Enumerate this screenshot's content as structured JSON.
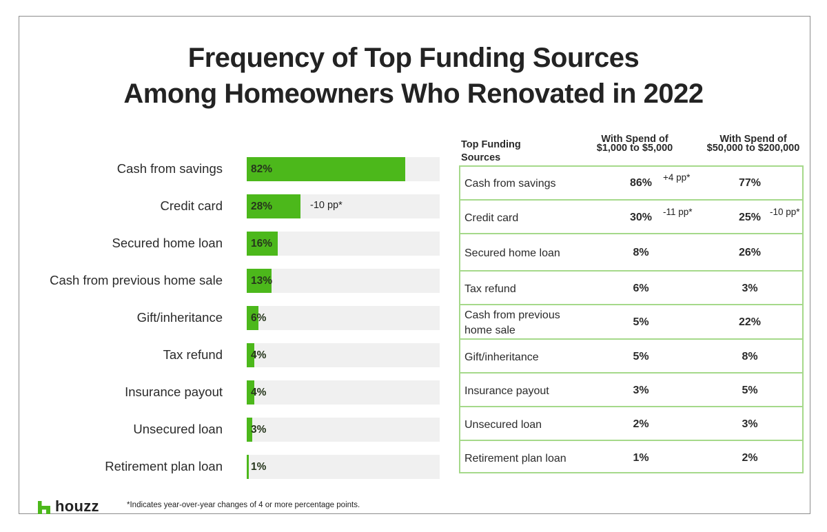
{
  "title": {
    "line1": "Frequency of Top Funding Sources",
    "line2": "Among Homeowners Who Renovated in 2022"
  },
  "colors": {
    "bar_fill": "#4cb81b",
    "bar_track": "#f0f0f0",
    "table_border": "#a5d98a",
    "brand_green": "#4cb81b"
  },
  "chart_data": [
    {
      "type": "bar",
      "orientation": "horizontal",
      "title": "Frequency of Top Funding Sources Among Homeowners Who Renovated in 2022",
      "xlabel": "",
      "ylabel": "",
      "xlim": [
        0,
        100
      ],
      "grid": false,
      "legend": null,
      "categories": [
        "Cash from savings",
        "Credit card",
        "Secured home loan",
        "Cash from previous home sale",
        "Gift/inheritance",
        "Tax refund",
        "Insurance payout",
        "Unsecured loan",
        "Retirement plan loan"
      ],
      "values": [
        82,
        28,
        16,
        13,
        6,
        4,
        4,
        3,
        1
      ],
      "value_labels": [
        "82%",
        "28%",
        "16%",
        "13%",
        "6%",
        "4%",
        "4%",
        "3%",
        "1%"
      ],
      "annotations": [
        {
          "category": "Credit card",
          "text": "-10 pp*"
        }
      ]
    },
    {
      "type": "table",
      "columns": [
        "Top Funding Sources",
        "With Spend of $1,000 to $5,000",
        "With Spend of $50,000 to $200,000"
      ],
      "rows": [
        {
          "source": "Cash from savings",
          "low": 86,
          "low_annot": "+4 pp*",
          "high": 77,
          "high_annot": ""
        },
        {
          "source": "Credit card",
          "low": 30,
          "low_annot": "-11 pp*",
          "high": 25,
          "high_annot": "-10 pp*"
        },
        {
          "source": "Secured home loan",
          "low": 8,
          "low_annot": "",
          "high": 26,
          "high_annot": ""
        },
        {
          "source": "Tax refund",
          "low": 6,
          "low_annot": "",
          "high": 3,
          "high_annot": ""
        },
        {
          "source": "Cash from previous home sale",
          "low": 5,
          "low_annot": "",
          "high": 22,
          "high_annot": ""
        },
        {
          "source": "Gift/inheritance",
          "low": 5,
          "low_annot": "",
          "high": 8,
          "high_annot": ""
        },
        {
          "source": "Insurance payout",
          "low": 3,
          "low_annot": "",
          "high": 5,
          "high_annot": ""
        },
        {
          "source": "Unsecured loan",
          "low": 2,
          "low_annot": "",
          "high": 3,
          "high_annot": ""
        },
        {
          "source": "Retirement plan loan",
          "low": 1,
          "low_annot": "",
          "high": 2,
          "high_annot": ""
        }
      ]
    }
  ],
  "bars": [
    {
      "label": "Cash from savings",
      "value": 82,
      "value_label": "82%",
      "annot": ""
    },
    {
      "label": "Credit card",
      "value": 28,
      "value_label": "28%",
      "annot": "-10 pp*"
    },
    {
      "label": "Secured home loan",
      "value": 16,
      "value_label": "16%",
      "annot": ""
    },
    {
      "label": "Cash from previous home sale",
      "value": 13,
      "value_label": "13%",
      "annot": ""
    },
    {
      "label": "Gift/inheritance",
      "value": 6,
      "value_label": "6%",
      "annot": ""
    },
    {
      "label": "Tax refund",
      "value": 4,
      "value_label": "4%",
      "annot": ""
    },
    {
      "label": "Insurance payout",
      "value": 4,
      "value_label": "4%",
      "annot": ""
    },
    {
      "label": "Unsecured loan",
      "value": 3,
      "value_label": "3%",
      "annot": ""
    },
    {
      "label": "Retirement plan loan",
      "value": 1,
      "value_label": "1%",
      "annot": ""
    }
  ],
  "table": {
    "header_left_line1": "Top Funding",
    "header_left_line2": "Sources",
    "col1_line1": "With Spend of",
    "col1_line2": "$1,000 to $5,000",
    "col2_line1": "With Spend of",
    "col2_line2": "$50,000 to $200,000",
    "rows": [
      {
        "label_line1": "Cash from savings",
        "label_line2": "",
        "col1": "86%",
        "col1_annot": "+4 pp*",
        "col2": "77%",
        "col2_annot": ""
      },
      {
        "label_line1": "Credit card",
        "label_line2": "",
        "col1": "30%",
        "col1_annot": "-11 pp*",
        "col2": "25%",
        "col2_annot": "-10 pp*"
      },
      {
        "label_line1": "Secured home loan",
        "label_line2": "",
        "col1": "8%",
        "col1_annot": "",
        "col2": "26%",
        "col2_annot": ""
      },
      {
        "label_line1": "Tax refund",
        "label_line2": "",
        "col1": "6%",
        "col1_annot": "",
        "col2": "3%",
        "col2_annot": ""
      },
      {
        "label_line1": "Cash from previous",
        "label_line2": "home sale",
        "col1": "5%",
        "col1_annot": "",
        "col2": "22%",
        "col2_annot": ""
      },
      {
        "label_line1": "Gift/inheritance",
        "label_line2": "",
        "col1": "5%",
        "col1_annot": "",
        "col2": "8%",
        "col2_annot": ""
      },
      {
        "label_line1": "Insurance payout",
        "label_line2": "",
        "col1": "3%",
        "col1_annot": "",
        "col2": "5%",
        "col2_annot": ""
      },
      {
        "label_line1": "Unsecured loan",
        "label_line2": "",
        "col1": "2%",
        "col1_annot": "",
        "col2": "3%",
        "col2_annot": ""
      },
      {
        "label_line1": "Retirement plan loan",
        "label_line2": "",
        "col1": "1%",
        "col1_annot": "",
        "col2": "2%",
        "col2_annot": ""
      }
    ]
  },
  "footer": {
    "logo_text": "houzz",
    "footnote": "*Indicates year-over-year changes of 4 or more percentage points."
  }
}
